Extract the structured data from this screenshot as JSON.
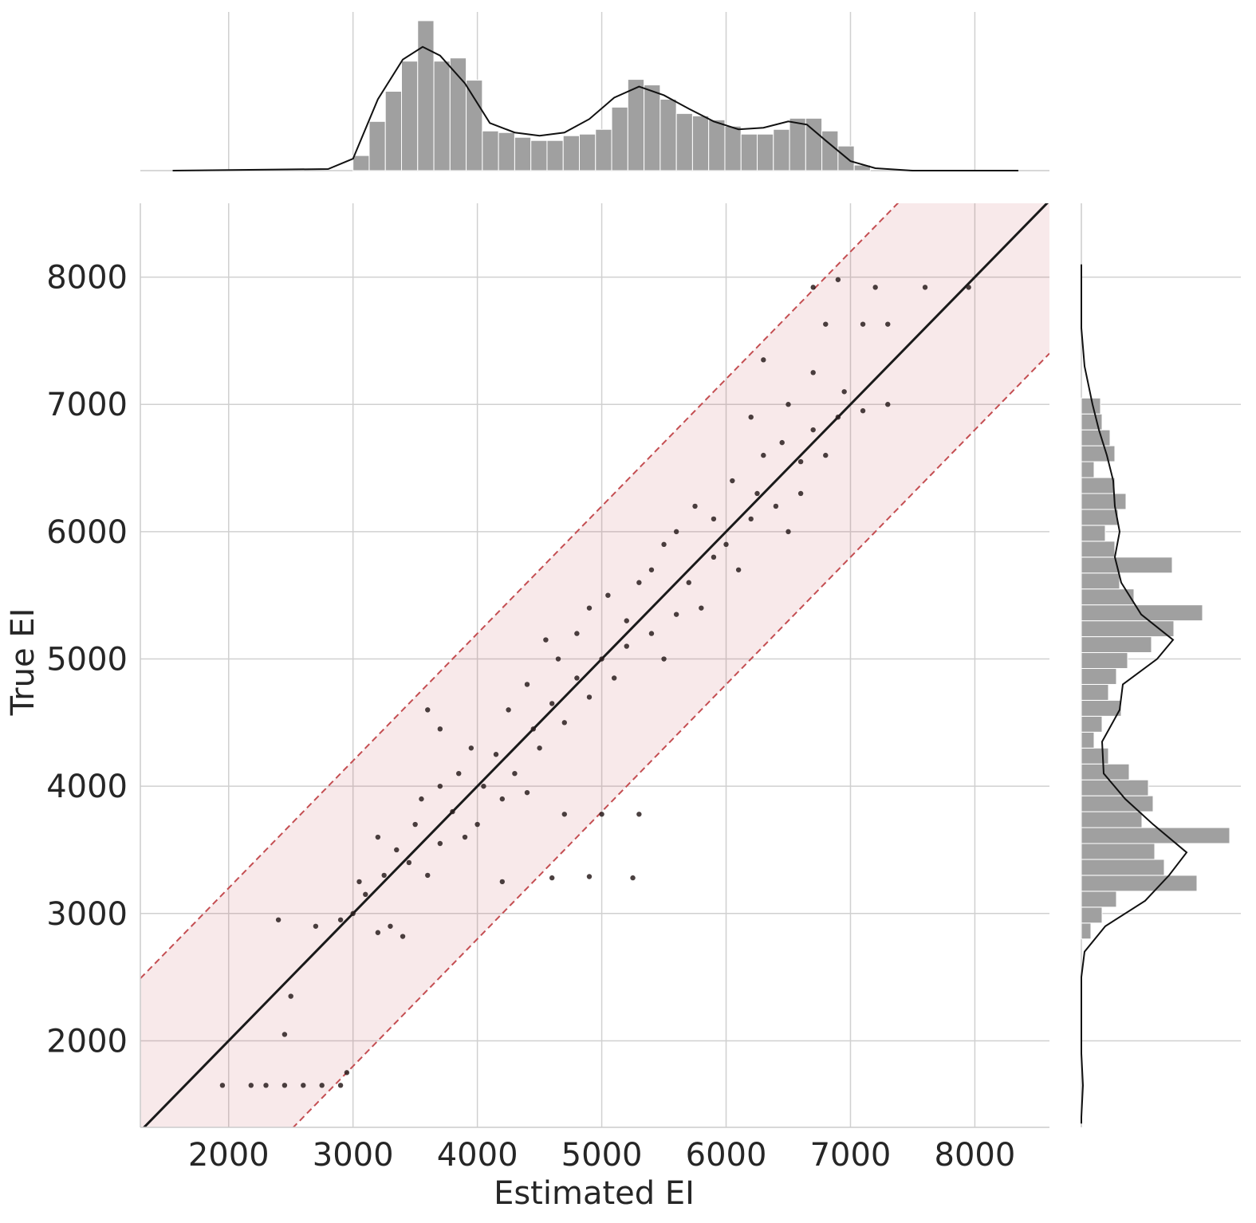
{
  "chart_data": {
    "type": "scatter",
    "x_label": "Estimated EI",
    "y_label": "True EI",
    "xlim": [
      1290,
      8600
    ],
    "ylim": [
      1320,
      8580
    ],
    "xticks": [
      2000,
      3000,
      4000,
      5000,
      6000,
      7000,
      8000
    ],
    "yticks": [
      2000,
      3000,
      4000,
      5000,
      6000,
      7000,
      8000
    ],
    "grid": true,
    "color": "#2a1f1f",
    "band": 1200,
    "band_color": "#c44e52",
    "x": [
      1950,
      2180,
      2300,
      2450,
      2600,
      2750,
      2900,
      2450,
      2950,
      2500,
      2400,
      2700,
      2900,
      3000,
      3100,
      3200,
      3300,
      3400,
      3050,
      3250,
      3350,
      3200,
      3450,
      3500,
      3600,
      3700,
      3550,
      3700,
      3800,
      3900,
      4000,
      3850,
      4050,
      4200,
      3950,
      4150,
      4300,
      4400,
      3700,
      3600,
      4250,
      4450,
      4500,
      4600,
      4400,
      4700,
      4800,
      4900,
      4650,
      4550,
      4800,
      5000,
      5100,
      5200,
      4900,
      5050,
      5200,
      5300,
      5400,
      5500,
      5600,
      5400,
      5500,
      5700,
      5800,
      5900,
      5600,
      5750,
      5900,
      6000,
      6100,
      6200,
      6050,
      6250,
      6400,
      6500,
      6600,
      6300,
      6450,
      6600,
      6700,
      6800,
      6900,
      6500,
      6200,
      6950,
      7100,
      7300,
      6300,
      6700,
      5300,
      5000,
      4700,
      5250,
      4900,
      4600,
      4200,
      6800,
      7100,
      7300,
      6700,
      7200,
      7600,
      7950,
      6900
    ],
    "y": [
      1650,
      1650,
      1650,
      1650,
      1650,
      1650,
      1650,
      2050,
      1750,
      2350,
      2950,
      2900,
      2950,
      3000,
      3150,
      2850,
      2900,
      2820,
      3250,
      3300,
      3500,
      3600,
      3400,
      3700,
      3300,
      3550,
      3900,
      4000,
      3800,
      3600,
      3700,
      4100,
      4000,
      3900,
      4300,
      4250,
      4100,
      3950,
      4450,
      4600,
      4600,
      4450,
      4300,
      4650,
      4800,
      4500,
      4850,
      4700,
      5000,
      5150,
      5200,
      5000,
      4850,
      5100,
      5400,
      5500,
      5300,
      5600,
      5200,
      5000,
      5350,
      5700,
      5900,
      5600,
      5400,
      5800,
      6000,
      6200,
      6100,
      5900,
      5700,
      6100,
      6400,
      6300,
      6200,
      6000,
      6300,
      6600,
      6700,
      6550,
      6800,
      6600,
      6900,
      7000,
      6900,
      7100,
      6950,
      7000,
      7350,
      7250,
      3780,
      3780,
      3780,
      3280,
      3290,
      3280,
      3250,
      7630,
      7630,
      7630,
      7920,
      7920,
      7920,
      7920,
      7980
    ],
    "marginal_x": {
      "color": "#a0a0a0",
      "ylim": [
        0,
        200
      ],
      "bins": [
        3000,
        3130,
        3260,
        3390,
        3520,
        3650,
        3780,
        3910,
        4040,
        4170,
        4300,
        4430,
        4560,
        4690,
        4820,
        4950,
        5080,
        5210,
        5340,
        5470,
        5600,
        5730,
        5860,
        5990,
        6120,
        6250,
        6380,
        6510,
        6640,
        6770,
        6900,
        7030,
        7160
      ],
      "counts": [
        19,
        62,
        100,
        138,
        189,
        138,
        142,
        114,
        50,
        48,
        42,
        38,
        38,
        44,
        46,
        52,
        80,
        115,
        108,
        90,
        72,
        69,
        64,
        56,
        46,
        46,
        52,
        66,
        66,
        50,
        31,
        7
      ],
      "kde_x": [
        1550,
        2800,
        3000,
        3200,
        3400,
        3560,
        3700,
        3900,
        4100,
        4300,
        4500,
        4700,
        4900,
        5100,
        5300,
        5500,
        5700,
        5900,
        6100,
        6300,
        6500,
        6650,
        6800,
        7000,
        7200,
        7500,
        8350
      ],
      "kde_y": [
        0,
        2,
        15,
        90,
        140,
        156,
        145,
        110,
        60,
        48,
        44,
        48,
        65,
        92,
        106,
        95,
        78,
        62,
        52,
        54,
        62,
        58,
        38,
        12,
        3,
        0,
        0
      ]
    },
    "marginal_y": {
      "color": "#a0a0a0",
      "xlim": [
        0,
        200
      ],
      "bins": [
        2800,
        2925,
        3050,
        3175,
        3300,
        3425,
        3550,
        3675,
        3800,
        3925,
        4050,
        4175,
        4300,
        4425,
        4550,
        4675,
        4800,
        4925,
        5050,
        5175,
        5300,
        5425,
        5550,
        5675,
        5800,
        5925,
        6050,
        6175,
        6300,
        6425,
        6550,
        6675,
        6800,
        6925,
        7050
      ],
      "counts": [
        12,
        26,
        44,
        145,
        104,
        92,
        186,
        76,
        90,
        84,
        60,
        34,
        16,
        26,
        50,
        34,
        44,
        58,
        88,
        116,
        152,
        66,
        48,
        114,
        42,
        30,
        46,
        56,
        42,
        16,
        42,
        36,
        26,
        24
      ],
      "kde_x": [
        1350,
        1400,
        1650,
        1900,
        2500,
        2700,
        2900,
        3100,
        3300,
        3480,
        3700,
        3900,
        4100,
        4350,
        4600,
        4800,
        5000,
        5150,
        5350,
        5600,
        5800,
        6000,
        6200,
        6400,
        6600,
        6800,
        7000,
        7300,
        7600,
        8100
      ],
      "kde_y": [
        0,
        0,
        2,
        0,
        0,
        4,
        30,
        80,
        110,
        132,
        90,
        55,
        28,
        26,
        48,
        52,
        95,
        115,
        75,
        50,
        42,
        48,
        42,
        40,
        32,
        22,
        14,
        4,
        0,
        0
      ]
    }
  }
}
